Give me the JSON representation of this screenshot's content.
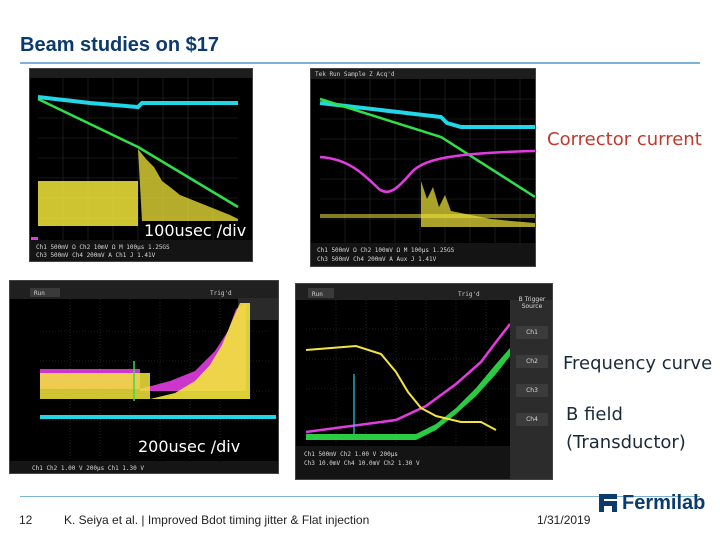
{
  "slide": {
    "title": "Beam studies on $17",
    "page_number": "12",
    "footer_text": "K. Seiya et al. | Improved Bdot timing jitter & Flat injection",
    "date": "1/31/2019",
    "logo_text": "Fermilab"
  },
  "annotations": {
    "top_scale": "100usec /div",
    "bottom_scale": "200usec /div",
    "corrector_current": "Corrector current",
    "frequency_curve": "Frequency curve",
    "b_field_line1": "B field",
    "b_field_line2": "(Transductor)"
  },
  "scope_side_menu": {
    "title_line1": "B Trigger",
    "title_line2": "Source",
    "items": [
      "Ch1",
      "Ch2",
      "Ch3",
      "Ch4"
    ]
  },
  "colors": {
    "title": "#0b3a6e",
    "rule": "#7fb2d9",
    "trace_cyan": "#21d6e6",
    "trace_green": "#2fe04a",
    "trace_yellow": "#f2e63a",
    "trace_magenta": "#e23ce0"
  }
}
